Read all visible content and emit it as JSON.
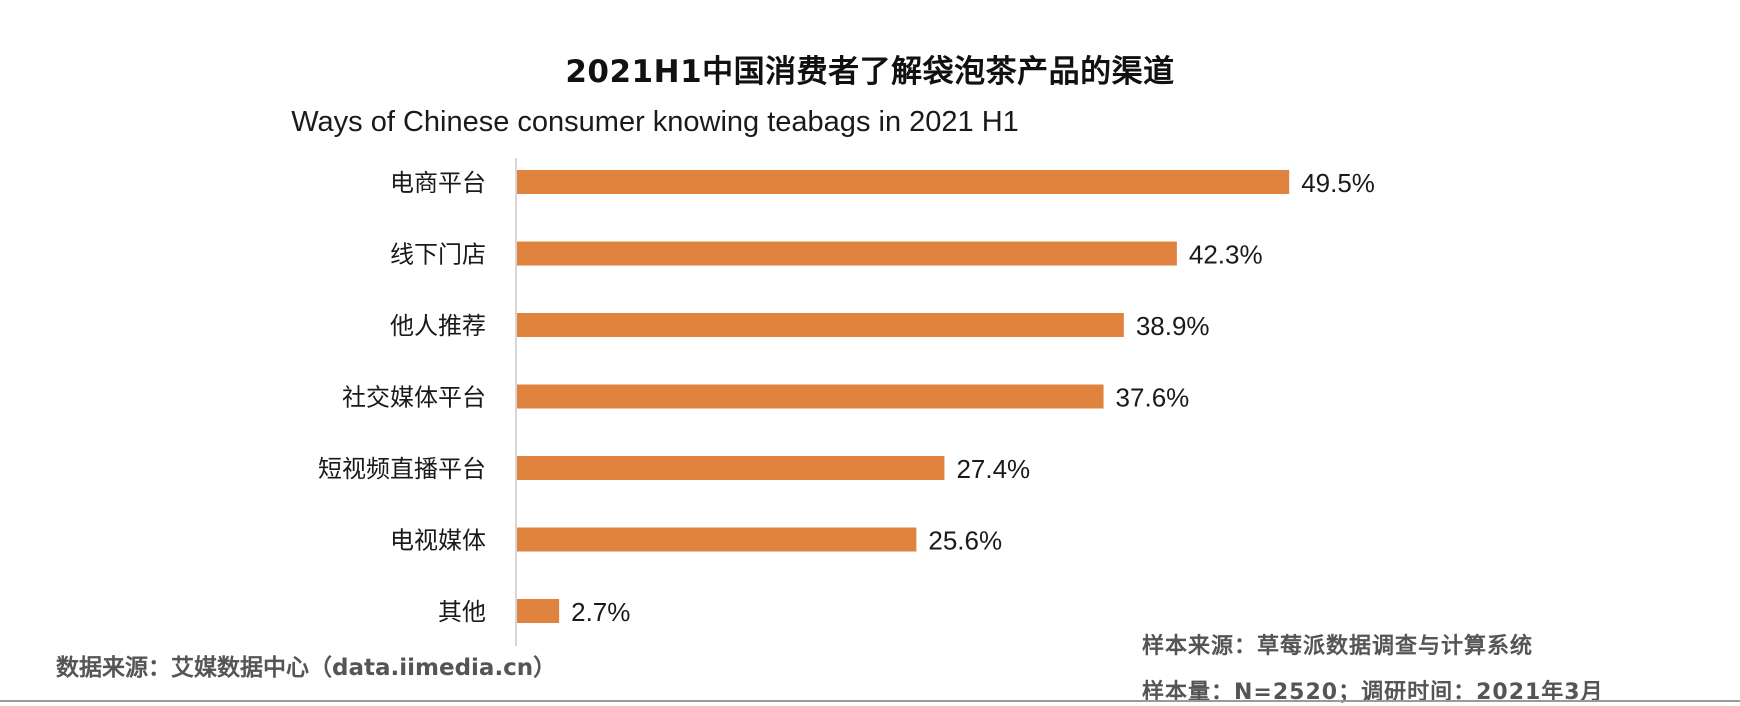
{
  "chart_data": {
    "type": "bar",
    "orientation": "horizontal",
    "title": "2021H1中国消费者了解袋泡茶产品的渠道",
    "subtitle": "Ways of Chinese consumer knowing teabags in 2021 H1",
    "categories": [
      "电商平台",
      "线下门店",
      "他人推荐",
      "社交媒体平台",
      "短视频直播平台",
      "电视媒体",
      "其他"
    ],
    "values": [
      49.5,
      42.3,
      38.9,
      37.6,
      27.4,
      25.6,
      2.7
    ],
    "value_labels": [
      "49.5%",
      "42.3%",
      "38.9%",
      "37.6%",
      "27.4%",
      "25.6%",
      "2.7%"
    ],
    "unit": "%",
    "bar_color": "#E0833F",
    "axis_color": "#C8C8C8",
    "grid": false,
    "legend": "none"
  },
  "footer": {
    "data_source": "数据来源：艾媒数据中心（data.iimedia.cn）",
    "sample_source": "样本来源：草莓派数据调查与计算系统",
    "sample_info": "样本量：N=2520；调研时间：2021年3月"
  }
}
